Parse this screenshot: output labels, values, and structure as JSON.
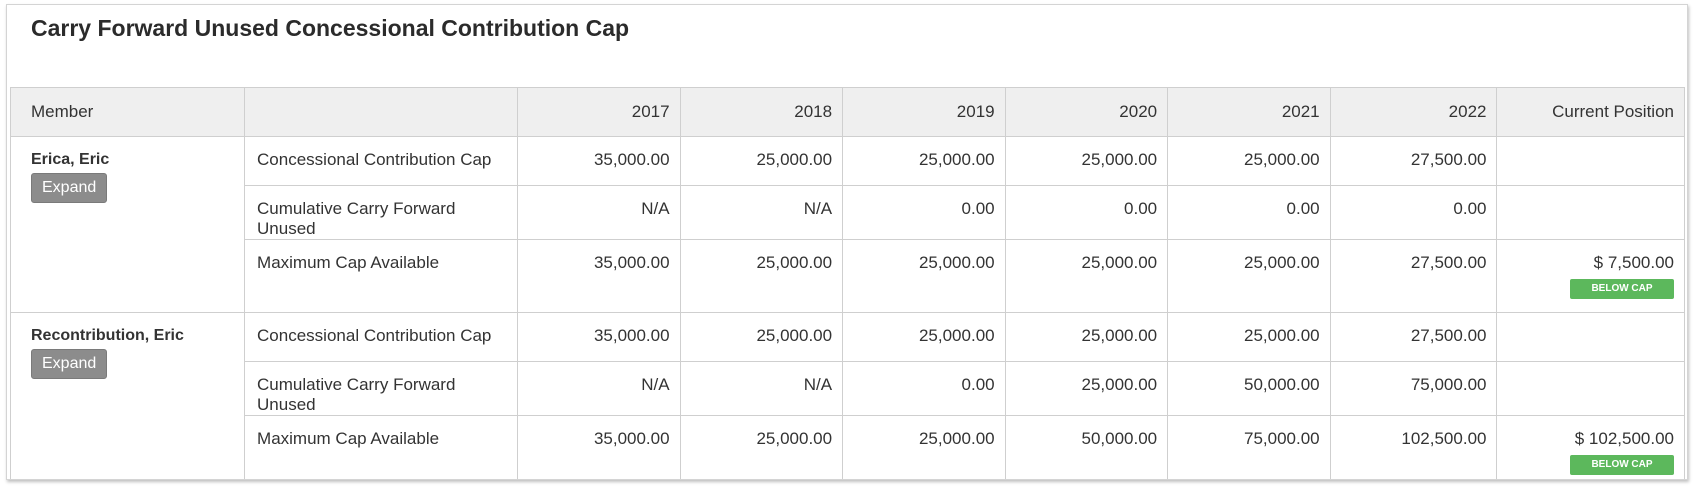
{
  "title": "Carry Forward Unused Concessional Contribution Cap",
  "columns": {
    "member": "Member",
    "blank": "",
    "years": [
      "2017",
      "2018",
      "2019",
      "2020",
      "2021",
      "2022"
    ],
    "current_position": "Current Position"
  },
  "expand_label": "Expand",
  "members": [
    {
      "name": "Erica, Eric",
      "rows": [
        {
          "label": "Concessional Contribution Cap",
          "values": [
            "35,000.00",
            "25,000.00",
            "25,000.00",
            "25,000.00",
            "25,000.00",
            "27,500.00"
          ]
        },
        {
          "label": "Cumulative Carry Forward Unused",
          "values": [
            "N/A",
            "N/A",
            "0.00",
            "0.00",
            "0.00",
            "0.00"
          ]
        },
        {
          "label": "Maximum Cap Available",
          "values": [
            "35,000.00",
            "25,000.00",
            "25,000.00",
            "25,000.00",
            "25,000.00",
            "27,500.00"
          ]
        }
      ],
      "current_position": "$ 7,500.00",
      "status": "BELOW CAP"
    },
    {
      "name": "Recontribution, Eric",
      "rows": [
        {
          "label": "Concessional Contribution Cap",
          "values": [
            "35,000.00",
            "25,000.00",
            "25,000.00",
            "25,000.00",
            "25,000.00",
            "27,500.00"
          ]
        },
        {
          "label": "Cumulative Carry Forward Unused",
          "values": [
            "N/A",
            "N/A",
            "0.00",
            "25,000.00",
            "50,000.00",
            "75,000.00"
          ]
        },
        {
          "label": "Maximum Cap Available",
          "values": [
            "35,000.00",
            "25,000.00",
            "25,000.00",
            "50,000.00",
            "75,000.00",
            "102,500.00"
          ]
        }
      ],
      "current_position": "$ 102,500.00",
      "status": "BELOW CAP"
    }
  ],
  "colors": {
    "badge_green": "#5cb85c",
    "button_gray": "#8c8c8c",
    "header_bg": "#efefef"
  }
}
